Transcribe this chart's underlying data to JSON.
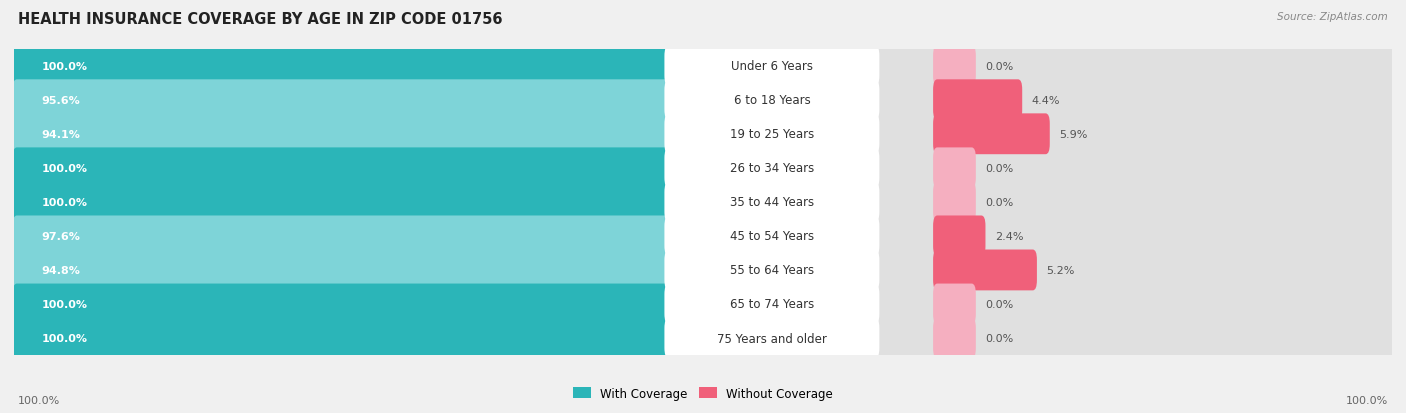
{
  "title": "HEALTH INSURANCE COVERAGE BY AGE IN ZIP CODE 01756",
  "source": "Source: ZipAtlas.com",
  "categories": [
    "Under 6 Years",
    "6 to 18 Years",
    "19 to 25 Years",
    "26 to 34 Years",
    "35 to 44 Years",
    "45 to 54 Years",
    "55 to 64 Years",
    "65 to 74 Years",
    "75 Years and older"
  ],
  "with_coverage": [
    100.0,
    95.6,
    94.1,
    100.0,
    100.0,
    97.6,
    94.8,
    100.0,
    100.0
  ],
  "without_coverage": [
    0.0,
    4.4,
    5.9,
    0.0,
    0.0,
    2.4,
    5.2,
    0.0,
    0.0
  ],
  "color_with_dark": "#2bb5b8",
  "color_with_light": "#7ed4d8",
  "color_without_dark": "#f0607a",
  "color_without_light": "#f5afc0",
  "bg_color": "#f0f0f0",
  "row_bg": "#e0e0e0",
  "label_bg": "#ffffff",
  "title_fontsize": 10.5,
  "source_fontsize": 7.5,
  "bar_label_fontsize": 8,
  "cat_label_fontsize": 8.5,
  "axis_label_fontsize": 8
}
